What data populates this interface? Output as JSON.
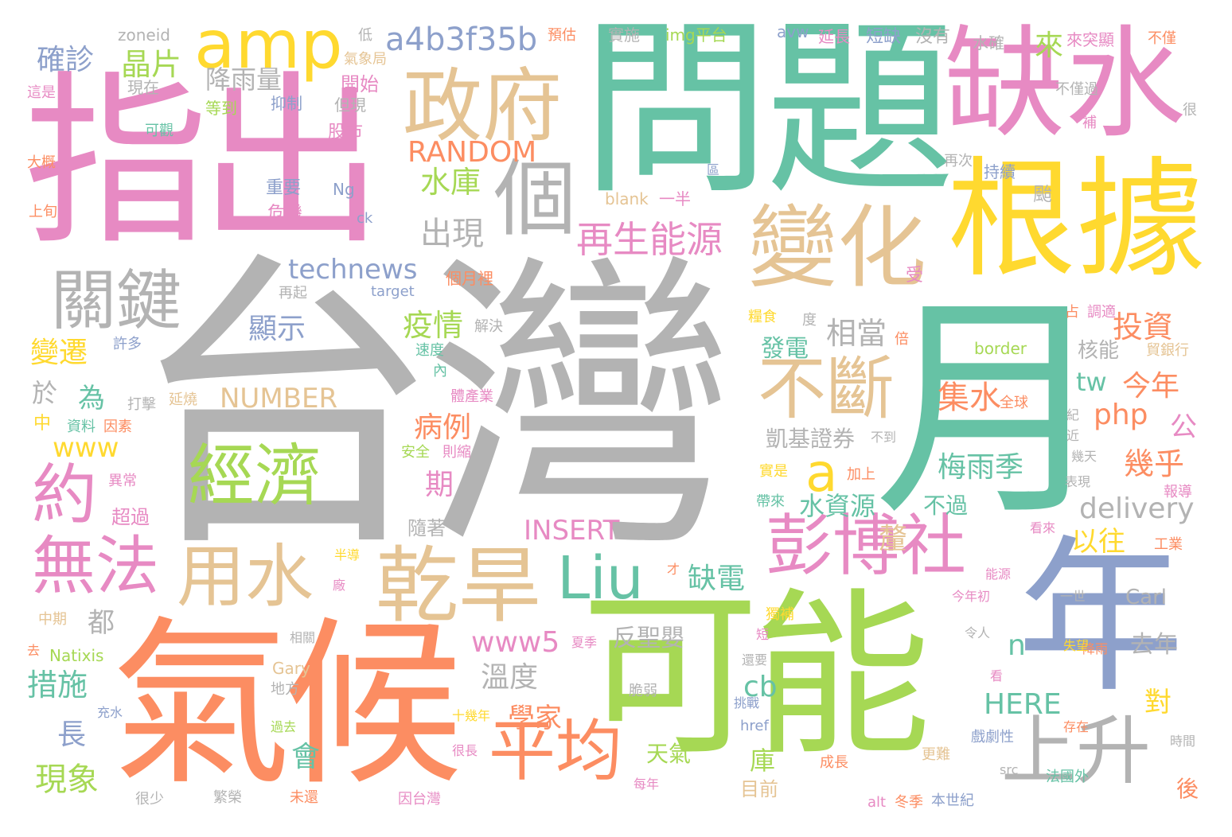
{
  "palette": [
    "#b3b3b3",
    "#e78ac3",
    "#66c2a5",
    "#fc8d62",
    "#a6d854",
    "#8da0cb",
    "#e5c494",
    "#ffd92f"
  ],
  "words": [
    {
      "text": "台灣",
      "c": "#b3b3b3"
    },
    {
      "text": "問題",
      "c": "#66c2a5"
    },
    {
      "text": "指出",
      "c": "#e78ac3"
    },
    {
      "text": "氣候",
      "c": "#fc8d62"
    },
    {
      "text": "可能",
      "c": "#a6d854"
    },
    {
      "text": "月",
      "c": "#66c2a5"
    },
    {
      "text": "年",
      "c": "#8da0cb"
    },
    {
      "text": "缺水",
      "c": "#e78ac3"
    },
    {
      "text": "根據",
      "c": "#ffd92f"
    },
    {
      "text": "政府",
      "c": "#e5c494"
    },
    {
      "text": "變化",
      "c": "#e5c494"
    },
    {
      "text": "amp",
      "c": "#ffd92f"
    },
    {
      "text": "個",
      "c": "#b3b3b3"
    },
    {
      "text": "經濟",
      "c": "#a6d854"
    },
    {
      "text": "乾旱",
      "c": "#e5c494"
    },
    {
      "text": "用水",
      "c": "#e5c494"
    },
    {
      "text": "彭博社",
      "c": "#e78ac3"
    },
    {
      "text": "關鍵",
      "c": "#b3b3b3"
    },
    {
      "text": "無法",
      "c": "#e78ac3"
    },
    {
      "text": "約",
      "c": "#e78ac3"
    },
    {
      "text": "Liu",
      "c": "#66c2a5"
    },
    {
      "text": "平均",
      "c": "#fc8d62"
    },
    {
      "text": "上升",
      "c": "#b3b3b3"
    },
    {
      "text": "不斷",
      "c": "#e5c494"
    },
    {
      "text": "a",
      "c": "#ffd92f"
    },
    {
      "text": "a4b3f35b",
      "c": "#8da0cb"
    },
    {
      "text": "再生能源",
      "c": "#e78ac3"
    },
    {
      "text": "RANDOM",
      "c": "#fc8d62"
    },
    {
      "text": "出現",
      "c": "#b3b3b3"
    },
    {
      "text": "technews",
      "c": "#8da0cb"
    },
    {
      "text": "水庫",
      "c": "#a6d854"
    },
    {
      "text": "晶片",
      "c": "#a6d854"
    },
    {
      "text": "降雨量",
      "c": "#b3b3b3"
    },
    {
      "text": "確診",
      "c": "#8da0cb"
    },
    {
      "text": "來",
      "c": "#a6d854"
    },
    {
      "text": "NUMBER",
      "c": "#e5c494"
    },
    {
      "text": "INSERT",
      "c": "#e78ac3"
    },
    {
      "text": "delivery",
      "c": "#b3b3b3"
    },
    {
      "text": "梅雨季",
      "c": "#66c2a5"
    },
    {
      "text": "投資",
      "c": "#fc8d62"
    },
    {
      "text": "相當",
      "c": "#b3b3b3"
    },
    {
      "text": "疫情",
      "c": "#a6d854"
    },
    {
      "text": "顯示",
      "c": "#8da0cb"
    },
    {
      "text": "變遷",
      "c": "#ffd92f"
    },
    {
      "text": "集水",
      "c": "#fc8d62"
    },
    {
      "text": "病例",
      "c": "#fc8d62"
    },
    {
      "text": "php",
      "c": "#fc8d62"
    },
    {
      "text": "今年",
      "c": "#fc8d62"
    },
    {
      "text": "www5",
      "c": "#e78ac3"
    },
    {
      "text": "溫度",
      "c": "#b3b3b3"
    },
    {
      "text": "缺電",
      "c": "#66c2a5"
    },
    {
      "text": "水資源",
      "c": "#66c2a5"
    },
    {
      "text": "反聖嬰",
      "c": "#b3b3b3"
    },
    {
      "text": "學家",
      "c": "#fc8d62"
    },
    {
      "text": "措施",
      "c": "#66c2a5"
    },
    {
      "text": "現象",
      "c": "#a6d854"
    },
    {
      "text": "HERE",
      "c": "#66c2a5"
    },
    {
      "text": "cb",
      "c": "#66c2a5"
    },
    {
      "text": "天氣",
      "c": "#a6d854"
    },
    {
      "text": "會",
      "c": "#66c2a5"
    },
    {
      "text": "幾乎",
      "c": "#fc8d62"
    },
    {
      "text": "以往",
      "c": "#ffd92f"
    },
    {
      "text": "去年",
      "c": "#b3b3b3"
    },
    {
      "text": "www",
      "c": "#ffd92f"
    },
    {
      "text": "凱基證券",
      "c": "#b3b3b3"
    },
    {
      "text": "Carl",
      "c": "#b3b3b3"
    },
    {
      "text": "核能",
      "c": "#b3b3b3"
    },
    {
      "text": "發電",
      "c": "#66c2a5"
    },
    {
      "text": "為",
      "c": "#66c2a5"
    },
    {
      "text": "於",
      "c": "#b3b3b3"
    },
    {
      "text": "都",
      "c": "#b3b3b3"
    },
    {
      "text": "長",
      "c": "#8da0cb"
    },
    {
      "text": "期",
      "c": "#e78ac3"
    },
    {
      "text": "不過",
      "c": "#66c2a5"
    },
    {
      "text": "對",
      "c": "#ffd92f"
    },
    {
      "text": "n",
      "c": "#66c2a5"
    },
    {
      "text": "tw",
      "c": "#66c2a5"
    },
    {
      "text": "公",
      "c": "#e78ac3"
    },
    {
      "text": "庫",
      "c": "#a6d854"
    },
    {
      "text": "目前",
      "c": "#e5c494"
    },
    {
      "text": "隨著",
      "c": "#b3b3b3"
    },
    {
      "text": "颱",
      "c": "#b3b3b3"
    },
    {
      "text": "釐",
      "c": "#e5c494"
    },
    {
      "text": "zoneid",
      "c": "#b3b3b3"
    },
    {
      "text": "低",
      "c": "#b3b3b3"
    },
    {
      "text": "預估",
      "c": "#fc8d62"
    },
    {
      "text": "實施",
      "c": "#b3b3b3"
    },
    {
      "text": "img平台",
      "c": "#a6d854"
    },
    {
      "text": "avw",
      "c": "#8da0cb"
    },
    {
      "text": "延長",
      "c": "#e78ac3"
    },
    {
      "text": "短缺",
      "c": "#8da0cb"
    },
    {
      "text": "沒有",
      "c": "#b3b3b3"
    },
    {
      "text": "水確",
      "c": "#b3b3b3"
    },
    {
      "text": "來突顯",
      "c": "#e78ac3"
    },
    {
      "text": "不僅",
      "c": "#fc8d62"
    },
    {
      "text": "氣象局",
      "c": "#e5c494"
    },
    {
      "text": "現在",
      "c": "#b3b3b3"
    },
    {
      "text": "開始",
      "c": "#e78ac3"
    },
    {
      "text": "這是",
      "c": "#e78ac3"
    },
    {
      "text": "抑制",
      "c": "#8da0cb"
    },
    {
      "text": "但現",
      "c": "#b3b3b3"
    },
    {
      "text": "等到",
      "c": "#a6d854"
    },
    {
      "text": "可觀",
      "c": "#66c2a5"
    },
    {
      "text": "股市",
      "c": "#e78ac3"
    },
    {
      "text": "大概",
      "c": "#fc8d62"
    },
    {
      "text": "重要",
      "c": "#8da0cb"
    },
    {
      "text": "Ng",
      "c": "#8da0cb"
    },
    {
      "text": "危機",
      "c": "#e78ac3"
    },
    {
      "text": "ck",
      "c": "#8da0cb"
    },
    {
      "text": "上旬",
      "c": "#fc8d62"
    },
    {
      "text": "blank",
      "c": "#e5c494"
    },
    {
      "text": "一半",
      "c": "#e78ac3"
    },
    {
      "text": "不僅過",
      "c": "#b3b3b3"
    },
    {
      "text": "補",
      "c": "#e78ac3"
    },
    {
      "text": "很",
      "c": "#b3b3b3"
    },
    {
      "text": "再次",
      "c": "#b3b3b3"
    },
    {
      "text": "持續",
      "c": "#8da0cb"
    },
    {
      "text": "個月裡",
      "c": "#fc8d62"
    },
    {
      "text": "target",
      "c": "#8da0cb"
    },
    {
      "text": "再起",
      "c": "#b3b3b3"
    },
    {
      "text": "受",
      "c": "#e78ac3"
    },
    {
      "text": "許多",
      "c": "#8da0cb"
    },
    {
      "text": "解決",
      "c": "#b3b3b3"
    },
    {
      "text": "糧食",
      "c": "#ffd92f"
    },
    {
      "text": "度",
      "c": "#b3b3b3"
    },
    {
      "text": "倍",
      "c": "#fc8d62"
    },
    {
      "text": "調適",
      "c": "#e78ac3"
    },
    {
      "text": "border",
      "c": "#a6d854"
    },
    {
      "text": "貿銀行",
      "c": "#e5c494"
    },
    {
      "text": "占",
      "c": "#fc8d62"
    },
    {
      "text": "速度",
      "c": "#66c2a5"
    },
    {
      "text": "內",
      "c": "#66c2a5"
    },
    {
      "text": "打擊",
      "c": "#b3b3b3"
    },
    {
      "text": "延燒",
      "c": "#e5c494"
    },
    {
      "text": "體產業",
      "c": "#e78ac3"
    },
    {
      "text": "不到",
      "c": "#b3b3b3"
    },
    {
      "text": "全球",
      "c": "#fc8d62"
    },
    {
      "text": "紀",
      "c": "#b3b3b3"
    },
    {
      "text": "中",
      "c": "#ffd92f"
    },
    {
      "text": "資料",
      "c": "#66c2a5"
    },
    {
      "text": "因素",
      "c": "#fc8d62"
    },
    {
      "text": "安全",
      "c": "#a6d854"
    },
    {
      "text": "則縮",
      "c": "#e78ac3"
    },
    {
      "text": "近",
      "c": "#b3b3b3"
    },
    {
      "text": "幾天",
      "c": "#b3b3b3"
    },
    {
      "text": "異常",
      "c": "#e78ac3"
    },
    {
      "text": "超過",
      "c": "#e78ac3"
    },
    {
      "text": "實是",
      "c": "#ffd92f"
    },
    {
      "text": "加上",
      "c": "#fc8d62"
    },
    {
      "text": "表現",
      "c": "#b3b3b3"
    },
    {
      "text": "帶來",
      "c": "#66c2a5"
    },
    {
      "text": "報導",
      "c": "#e78ac3"
    },
    {
      "text": "看來",
      "c": "#e78ac3"
    },
    {
      "text": "工業",
      "c": "#fc8d62"
    },
    {
      "text": "半導",
      "c": "#ffd92f"
    },
    {
      "text": "才",
      "c": "#fc8d62"
    },
    {
      "text": "能源",
      "c": "#e78ac3"
    },
    {
      "text": "今年初",
      "c": "#e78ac3"
    },
    {
      "text": "廠",
      "c": "#e78ac3"
    },
    {
      "text": "一世",
      "c": "#b3b3b3"
    },
    {
      "text": "中期",
      "c": "#e5c494"
    },
    {
      "text": "獨補",
      "c": "#ffd92f"
    },
    {
      "text": "夏季",
      "c": "#e78ac3"
    },
    {
      "text": "短",
      "c": "#e78ac3"
    },
    {
      "text": "相關",
      "c": "#b3b3b3"
    },
    {
      "text": "去",
      "c": "#fc8d62"
    },
    {
      "text": "Natixis",
      "c": "#a6d854"
    },
    {
      "text": "令人",
      "c": "#b3b3b3"
    },
    {
      "text": "降雨",
      "c": "#fc8d62"
    },
    {
      "text": "失望",
      "c": "#ffd92f"
    },
    {
      "text": "Gary",
      "c": "#e5c494"
    },
    {
      "text": "地方",
      "c": "#b3b3b3"
    },
    {
      "text": "還要",
      "c": "#b3b3b3"
    },
    {
      "text": "脆弱",
      "c": "#b3b3b3"
    },
    {
      "text": "看",
      "c": "#e78ac3"
    },
    {
      "text": "充水",
      "c": "#8da0cb"
    },
    {
      "text": "十幾年",
      "c": "#ffd92f"
    },
    {
      "text": "挑戰",
      "c": "#8da0cb"
    },
    {
      "text": "href",
      "c": "#8da0cb"
    },
    {
      "text": "過去",
      "c": "#a6d854"
    },
    {
      "text": "存在",
      "c": "#fc8d62"
    },
    {
      "text": "時間",
      "c": "#b3b3b3"
    },
    {
      "text": "很長",
      "c": "#e78ac3"
    },
    {
      "text": "戲劇性",
      "c": "#8da0cb"
    },
    {
      "text": "成長",
      "c": "#fc8d62"
    },
    {
      "text": "更難",
      "c": "#e5c494"
    },
    {
      "text": "src",
      "c": "#b3b3b3"
    },
    {
      "text": "法國外",
      "c": "#66c2a5"
    },
    {
      "text": "每年",
      "c": "#e78ac3"
    },
    {
      "text": "很少",
      "c": "#b3b3b3"
    },
    {
      "text": "繁榮",
      "c": "#b3b3b3"
    },
    {
      "text": "未還",
      "c": "#fc8d62"
    },
    {
      "text": "因台灣",
      "c": "#e78ac3"
    },
    {
      "text": "alt",
      "c": "#e78ac3"
    },
    {
      "text": "冬季",
      "c": "#fc8d62"
    },
    {
      "text": "本世紀",
      "c": "#8da0cb"
    },
    {
      "text": "後",
      "c": "#fc8d62"
    },
    {
      "text": "區",
      "c": "#8da0cb"
    }
  ]
}
